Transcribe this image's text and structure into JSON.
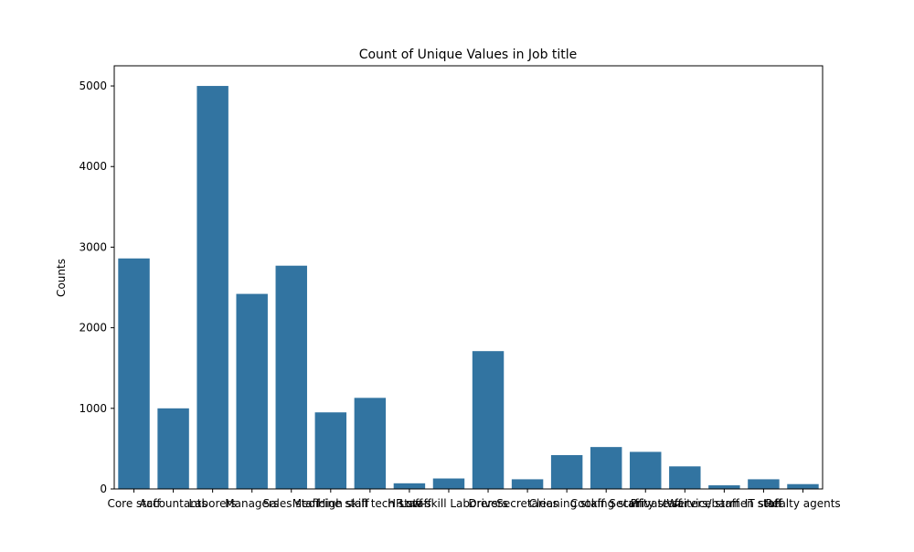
{
  "chart_data": {
    "type": "bar",
    "title": "Count of Unique Values in Job title",
    "xlabel": "",
    "ylabel": "Counts",
    "categories": [
      "Core staff",
      "Accountants",
      "Laborers",
      "Managers",
      "Sales staff",
      "Medicine staff",
      "High skill tech staff",
      "HR staff",
      "Low-skill Laborers",
      "Drivers",
      "Secretaries",
      "Cleaning staff",
      "Cooking staff",
      "Security staff",
      "Private service staff",
      "Waiters/barmen staff",
      "IT staff",
      "Realty agents"
    ],
    "values": [
      2860,
      1000,
      5000,
      2420,
      2770,
      950,
      1130,
      70,
      130,
      1710,
      120,
      420,
      520,
      460,
      280,
      45,
      120,
      60
    ],
    "ylim": [
      0,
      5250
    ],
    "yticks": [
      0,
      1000,
      2000,
      3000,
      4000,
      5000
    ],
    "bar_color": "#3274a1",
    "grid": false
  }
}
